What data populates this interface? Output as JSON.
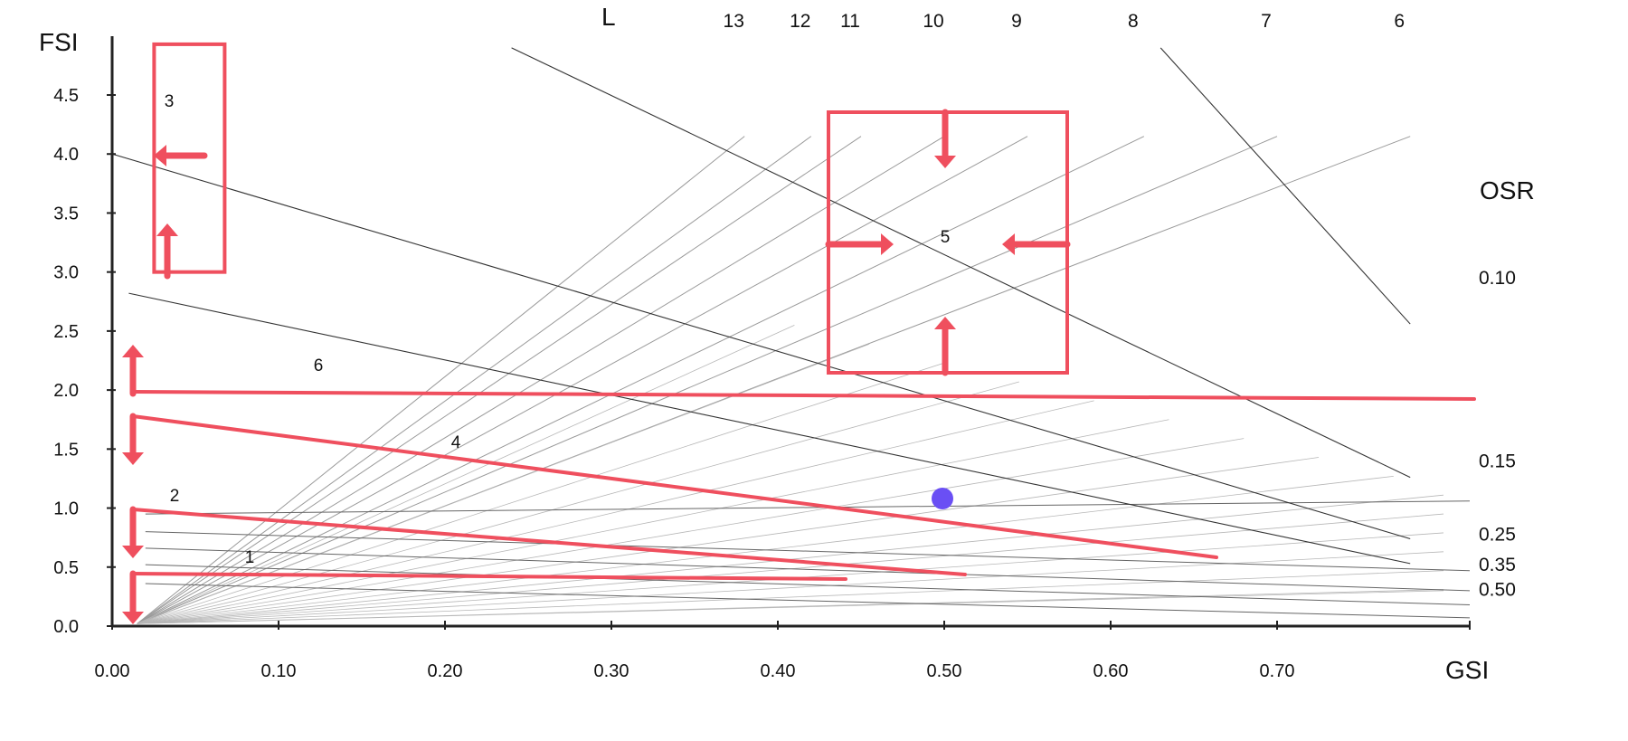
{
  "chart_data": {
    "type": "line",
    "title": "",
    "xlabel": "GSI",
    "ylabel": "FSI",
    "xlim": [
      0,
      0.78
    ],
    "ylim": [
      0,
      4.5
    ],
    "x_ticks": [
      0.0,
      0.1,
      0.2,
      0.3,
      0.4,
      0.5,
      0.6,
      0.7
    ],
    "x_tick_labels": [
      "0.00",
      "0.10",
      "0.20",
      "0.30",
      "0.40",
      "0.50",
      "0.60",
      "0.70"
    ],
    "y_ticks": [
      0.0,
      0.5,
      1.0,
      1.5,
      2.0,
      2.5,
      3.0,
      3.5,
      4.0,
      4.5
    ],
    "y_tick_labels": [
      "0.0",
      "0.5",
      "1.0",
      "1.5",
      "2.0",
      "2.5",
      "3.0",
      "3.5",
      "4.0",
      "4.5"
    ],
    "l_axis_title": "L",
    "l_lines": [
      {
        "label": "13",
        "value": 13,
        "fsi_at_tick": 4.6,
        "gsi_at_tick": 0.38,
        "visible_to": 0.36
      },
      {
        "label": "12",
        "value": 12,
        "fsi_at_tick": 4.6,
        "gsi_at_tick": 0.42,
        "visible_to": 0.4
      },
      {
        "label": "11",
        "value": 11,
        "fsi_at_tick": 4.6,
        "gsi_at_tick": 0.45,
        "visible_to": 0.43
      },
      {
        "label": "10",
        "value": 10,
        "fsi_at_tick": 4.6,
        "gsi_at_tick": 0.5,
        "visible_to": 0.48
      },
      {
        "label": "9",
        "value": 9,
        "fsi_at_tick": 4.6,
        "gsi_at_tick": 0.55,
        "visible_to": 0.53
      },
      {
        "label": "8",
        "value": 8,
        "fsi_at_tick": 4.6,
        "gsi_at_tick": 0.62,
        "visible_to": 0.6
      },
      {
        "label": "7",
        "value": 7,
        "fsi_at_tick": 4.6,
        "gsi_at_tick": 0.7,
        "visible_to": 0.7
      },
      {
        "label": "6",
        "value": 6,
        "fsi_at_tick": 4.6,
        "gsi_at_tick": 0.78,
        "visible_to": 0.78
      }
    ],
    "osr_axis_title": "OSR",
    "osr_lines": [
      {
        "label": "0.10",
        "value": 0.1
      },
      {
        "label": "0.15",
        "value": 0.15
      },
      {
        "label": "0.25",
        "value": 0.25
      },
      {
        "label": "0.35",
        "value": 0.35
      },
      {
        "label": "0.50",
        "value": 0.5
      }
    ],
    "reference_lines": [
      {
        "from": [
          0.0,
          4.0
        ],
        "to": [
          0.78,
          0.74
        ]
      },
      {
        "from": [
          0.01,
          2.82
        ],
        "to": [
          0.78,
          0.53
        ]
      },
      {
        "from": [
          0.24,
          4.9
        ],
        "to": [
          0.78,
          1.26
        ]
      },
      {
        "from": [
          0.63,
          4.9
        ],
        "to": [
          0.78,
          2.56
        ]
      }
    ],
    "annotations": {
      "area_1": {
        "label": "1",
        "line_from": [
          0.01,
          0.45
        ],
        "line_to": [
          0.43,
          0.41
        ]
      },
      "area_2": {
        "label": "2",
        "line_from": [
          0.01,
          1.0
        ],
        "line_to": [
          0.49,
          0.45
        ]
      },
      "area_3": {
        "label": "3",
        "box_gsi": [
          0.01,
          0.05
        ],
        "box_fsi": [
          3.0,
          4.93
        ]
      },
      "area_4": {
        "label": "4",
        "line_from": [
          0.01,
          1.78
        ],
        "line_to": [
          0.63,
          0.59
        ]
      },
      "area_5": {
        "label": "5",
        "box_gsi": [
          0.42,
          0.56
        ],
        "box_fsi": [
          2.15,
          4.35
        ]
      },
      "area_6": {
        "label": "6",
        "line_from": [
          0.01,
          2.0
        ],
        "line_to": [
          0.78,
          1.93
        ]
      }
    },
    "highlight_point": {
      "gsi": 0.48,
      "fsi": 1.09
    },
    "colors": {
      "annotation": "#ef4f5e",
      "point": "#6a4ff4",
      "axis": "#222222",
      "grid_line": "#9a9a9a",
      "dark_line": "#333333"
    },
    "grid": false,
    "legend": "none"
  }
}
